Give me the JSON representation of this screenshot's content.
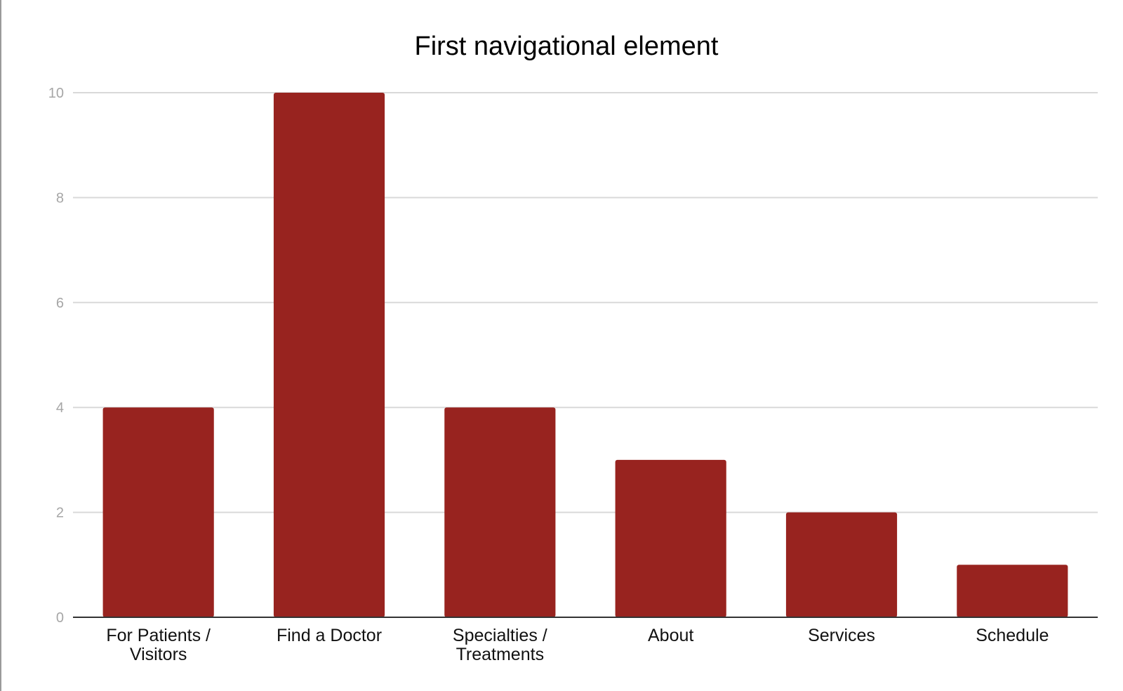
{
  "chart_data": {
    "type": "bar",
    "title": "First navigational element",
    "categories": [
      [
        "For Patients /",
        "Visitors"
      ],
      [
        "Find a Doctor"
      ],
      [
        "Specialties /",
        "Treatments"
      ],
      [
        "About"
      ],
      [
        "Services"
      ],
      [
        "Schedule"
      ]
    ],
    "values": [
      4,
      10,
      4,
      3,
      2,
      1
    ],
    "ylim": [
      0,
      10
    ],
    "yticks": [
      0,
      2,
      4,
      6,
      8,
      10
    ],
    "grid": true,
    "legend": "none",
    "bar_color": "#98231f"
  }
}
